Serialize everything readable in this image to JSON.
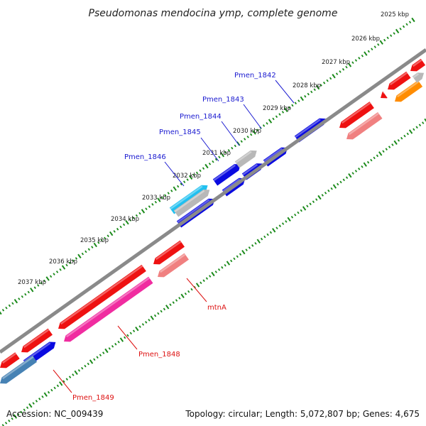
{
  "map": {
    "title": "Pseudomonas mendocina ymp, complete genome",
    "accession": "Accession: NC_009439",
    "topology": "Topology: circular; Length: 5,072,807 bp; Genes: 4,675"
  },
  "ticks": [
    {
      "label": "2025 kbp"
    },
    {
      "label": "2026 kbp"
    },
    {
      "label": "2027 kbp"
    },
    {
      "label": "2028 kbp"
    },
    {
      "label": "2029 kbp"
    },
    {
      "label": "2030 kbp"
    },
    {
      "label": "2031 kbp"
    },
    {
      "label": "2032 kbp"
    },
    {
      "label": "2033 kbp"
    },
    {
      "label": "2034 kbp"
    },
    {
      "label": "2035 kbp"
    },
    {
      "label": "2036 kbp"
    },
    {
      "label": "2037 kbp"
    }
  ],
  "labels": {
    "pmen_1842": "Pmen_1842",
    "pmen_1843": "Pmen_1843",
    "pmen_1844": "Pmen_1844",
    "pmen_1845": "Pmen_1845",
    "pmen_1846": "Pmen_1846",
    "mtna": "mtnA",
    "pmen_1848": "Pmen_1848",
    "pmen_1849": "Pmen_1849"
  },
  "colors": {
    "forward_label": "#1a1ad0",
    "reverse_label": "#dd1111",
    "cds_blue": "#0a0ae0",
    "cds_red": "#ee1111",
    "cds_pink": "#f08080",
    "cds_magenta": "#f02ca0",
    "cds_steel": "#4682b4",
    "cds_cyan": "#20c0f0",
    "cds_gray": "#b8b8b8",
    "cds_orange": "#ff8c00",
    "backbone": "#8a8a8a",
    "tick": "#1a8a1a"
  }
}
